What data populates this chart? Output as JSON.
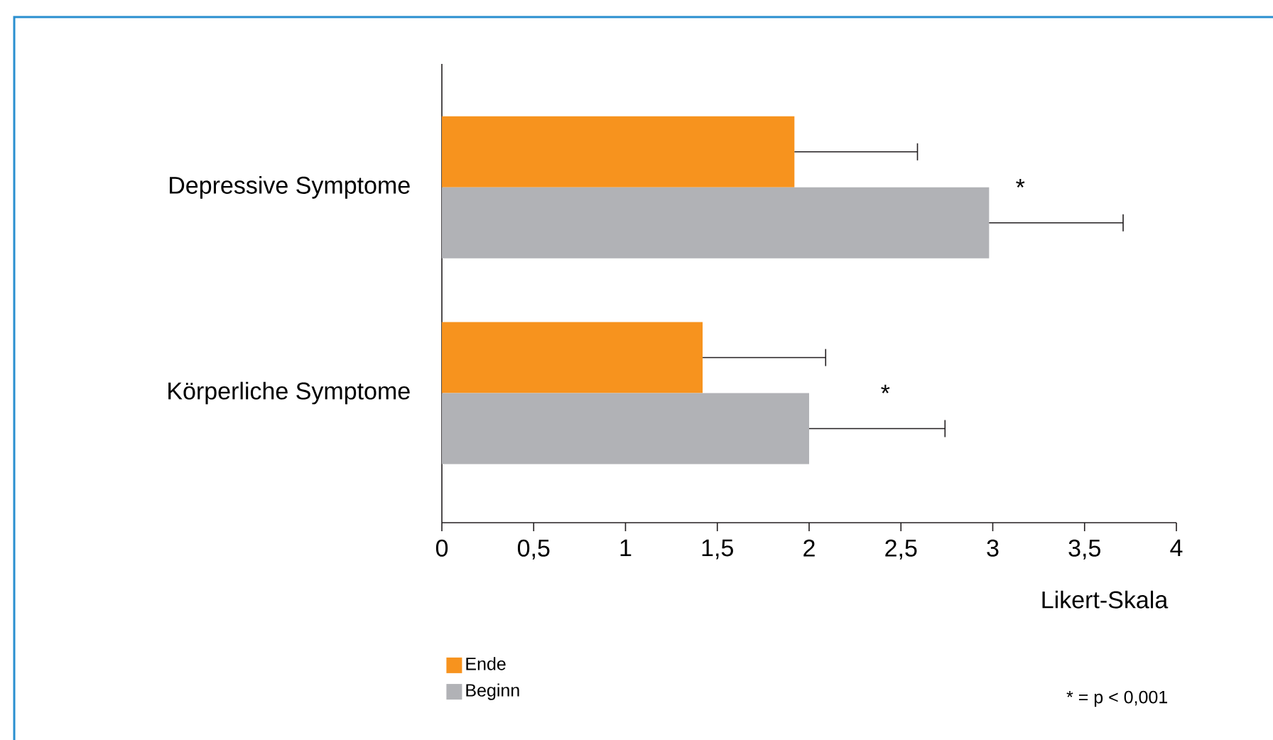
{
  "chart_data": {
    "type": "bar",
    "orientation": "horizontal",
    "categories": [
      "Depressive Symptome",
      "Körperliche Symptome"
    ],
    "series": [
      {
        "name": "Ende",
        "color": "#f7931e",
        "values": [
          1.92,
          1.42
        ],
        "errors": [
          [
            1.92,
            2.59
          ],
          [
            1.42,
            2.09
          ]
        ]
      },
      {
        "name": "Beginn",
        "color": "#b1b2b6",
        "values": [
          2.98,
          2.0
        ],
        "errors": [
          [
            2.98,
            3.71
          ],
          [
            2.0,
            2.74
          ]
        ]
      }
    ],
    "xlabel": "Likert-Skala",
    "xlim": [
      0,
      4
    ],
    "xticks": [
      0,
      {
        "value": 0.5,
        "label": "0,5"
      },
      1,
      {
        "value": 1.5,
        "label": "1,5"
      },
      2,
      {
        "value": 2.5,
        "label": "2,5"
      },
      3,
      {
        "value": 3.5,
        "label": "3,5"
      },
      4
    ],
    "annotations": [
      "*",
      "*",
      "* = p < 0,001"
    ],
    "legend": "bottom left",
    "grid": false
  }
}
